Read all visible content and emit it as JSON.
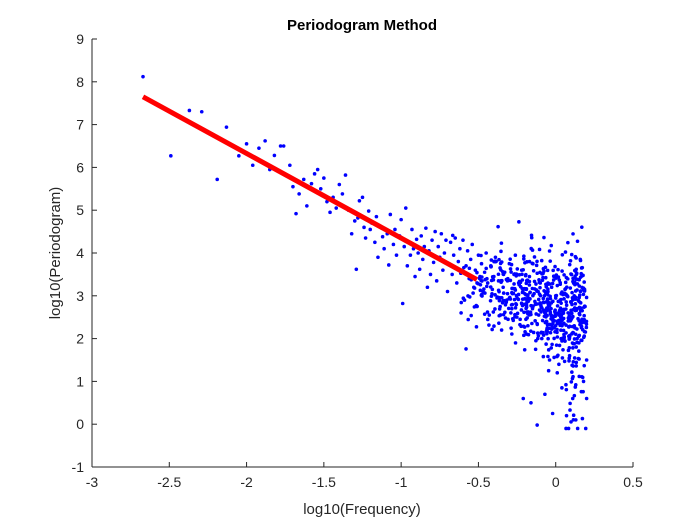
{
  "chart_data": {
    "type": "scatter",
    "title": "Periodogram Method",
    "xlabel": "log10(Frequency)",
    "ylabel": "log10(Periodogram)",
    "xlim": [
      -3,
      0.5
    ],
    "ylim": [
      -1,
      9
    ],
    "xticks": [
      -3,
      -2.5,
      -2,
      -1.5,
      -1,
      -0.5,
      0,
      0.5
    ],
    "xtick_labels": [
      "-3",
      "-2.5",
      "-2",
      "-1.5",
      "-1",
      "-0.5",
      "0",
      "0.5"
    ],
    "yticks": [
      -1,
      0,
      1,
      2,
      3,
      4,
      5,
      6,
      7,
      8,
      9
    ],
    "ytick_labels": [
      "-1",
      "0",
      "1",
      "2",
      "3",
      "4",
      "5",
      "6",
      "7",
      "8",
      "9"
    ],
    "grid": false,
    "series": [
      {
        "kind": "scatter",
        "color": "#0000ff",
        "points": [
          [
            -2.67,
            8.12
          ],
          [
            -2.49,
            6.27
          ],
          [
            -2.37,
            7.33
          ],
          [
            -2.29,
            7.3
          ],
          [
            -2.19,
            5.72
          ],
          [
            -2.13,
            6.94
          ],
          [
            -2.05,
            6.27
          ],
          [
            -2.0,
            6.55
          ],
          [
            -1.96,
            6.05
          ],
          [
            -1.92,
            6.45
          ],
          [
            -1.88,
            6.62
          ],
          [
            -1.85,
            5.95
          ],
          [
            -1.82,
            6.28
          ],
          [
            -1.78,
            6.5
          ],
          [
            -1.76,
            6.5
          ],
          [
            -1.72,
            6.05
          ],
          [
            -1.7,
            5.55
          ],
          [
            -1.68,
            4.92
          ],
          [
            -1.66,
            5.38
          ],
          [
            -1.63,
            5.72
          ],
          [
            -1.61,
            5.1
          ],
          [
            -1.58,
            5.62
          ],
          [
            -1.56,
            5.85
          ],
          [
            -1.54,
            5.95
          ],
          [
            -1.52,
            5.5
          ],
          [
            -1.5,
            5.75
          ],
          [
            -1.48,
            5.2
          ],
          [
            -1.46,
            4.95
          ],
          [
            -1.44,
            5.3
          ],
          [
            -1.42,
            5.05
          ],
          [
            -1.4,
            5.6
          ],
          [
            -1.38,
            5.38
          ],
          [
            -1.36,
            5.82
          ],
          [
            -1.34,
            5.0
          ],
          [
            -1.32,
            4.45
          ],
          [
            -1.3,
            4.75
          ],
          [
            -1.29,
            3.62
          ],
          [
            -1.28,
            4.82
          ],
          [
            -1.27,
            5.22
          ],
          [
            -1.25,
            5.3
          ],
          [
            -1.24,
            4.6
          ],
          [
            -1.23,
            4.35
          ],
          [
            -1.21,
            4.98
          ],
          [
            -1.2,
            4.55
          ],
          [
            -1.19,
            4.7
          ],
          [
            -1.17,
            4.25
          ],
          [
            -1.16,
            4.85
          ],
          [
            -1.15,
            3.9
          ],
          [
            -1.13,
            4.6
          ],
          [
            -1.12,
            4.38
          ],
          [
            -1.11,
            4.1
          ],
          [
            -1.09,
            4.45
          ],
          [
            -1.08,
            3.72
          ],
          [
            -1.07,
            4.9
          ],
          [
            -1.05,
            4.2
          ],
          [
            -1.04,
            4.55
          ],
          [
            -1.03,
            3.95
          ],
          [
            -1.01,
            4.4
          ],
          [
            -1.0,
            4.78
          ],
          [
            -0.99,
            2.82
          ],
          [
            -0.98,
            4.15
          ],
          [
            -0.97,
            5.05
          ],
          [
            -0.96,
            3.7
          ],
          [
            -0.95,
            4.25
          ],
          [
            -0.94,
            3.95
          ],
          [
            -0.93,
            4.55
          ],
          [
            -0.92,
            4.1
          ],
          [
            -0.91,
            3.45
          ],
          [
            -0.9,
            4.32
          ],
          [
            -0.89,
            4.0
          ],
          [
            -0.88,
            3.62
          ],
          [
            -0.87,
            4.4
          ],
          [
            -0.86,
            3.85
          ],
          [
            -0.85,
            4.15
          ],
          [
            -0.84,
            4.58
          ],
          [
            -0.83,
            3.2
          ],
          [
            -0.82,
            4.05
          ],
          [
            -0.81,
            3.5
          ],
          [
            -0.8,
            4.3
          ],
          [
            -0.79,
            3.78
          ],
          [
            -0.78,
            4.5
          ],
          [
            -0.77,
            3.35
          ],
          [
            -0.76,
            4.15
          ],
          [
            -0.75,
            3.9
          ],
          [
            -0.74,
            4.45
          ],
          [
            -0.73,
            3.6
          ],
          [
            -0.72,
            4.0
          ],
          [
            -0.71,
            4.3
          ],
          [
            -0.7,
            3.1
          ],
          [
            -0.69,
            3.75
          ],
          [
            -0.68,
            4.25
          ],
          [
            -0.67,
            3.5
          ],
          [
            -0.66,
            3.95
          ],
          [
            -0.65,
            4.35
          ],
          [
            -0.64,
            3.3
          ],
          [
            -0.63,
            3.8
          ],
          [
            -0.62,
            4.1
          ],
          [
            -0.61,
            3.55
          ],
          [
            -0.6,
            4.3
          ],
          [
            -0.59,
            2.9
          ],
          [
            -0.58,
            3.7
          ],
          [
            -0.57,
            4.05
          ],
          [
            -0.56,
            3.4
          ],
          [
            -0.55,
            3.85
          ],
          [
            -0.54,
            4.2
          ],
          [
            -0.53,
            3.2
          ],
          [
            -0.52,
            3.6
          ],
          [
            -0.51,
            2.75
          ],
          [
            -0.5,
            3.95
          ],
          [
            -0.49,
            3.45
          ],
          [
            -0.48,
            3.75
          ],
          [
            -0.47,
            3.1
          ],
          [
            -0.46,
            3.55
          ],
          [
            -0.45,
            4.0
          ],
          [
            -0.44,
            3.3
          ],
          [
            -0.43,
            2.55
          ],
          [
            -0.42,
            3.7
          ],
          [
            -0.41,
            3.15
          ],
          [
            -0.4,
            3.45
          ],
          [
            -0.39,
            3.9
          ],
          [
            -0.38,
            2.95
          ],
          [
            -0.37,
            3.35
          ],
          [
            -0.36,
            3.65
          ],
          [
            -0.35,
            2.2
          ],
          [
            -0.34,
            3.2
          ],
          [
            -0.33,
            3.55
          ],
          [
            -0.32,
            2.85
          ],
          [
            -0.31,
            3.4
          ],
          [
            -0.3,
            3.75
          ],
          [
            -0.29,
            2.6
          ],
          [
            -0.28,
            3.05
          ],
          [
            -0.27,
            3.5
          ],
          [
            -0.26,
            1.9
          ],
          [
            -0.25,
            2.95
          ],
          [
            -0.24,
            3.3
          ],
          [
            -0.23,
            2.45
          ],
          [
            -0.22,
            3.6
          ],
          [
            -0.21,
            0.6
          ],
          [
            -0.2,
            2.8
          ],
          [
            -0.19,
            3.15
          ],
          [
            -0.18,
            2.3
          ],
          [
            -0.17,
            3.45
          ],
          [
            -0.16,
            0.5
          ],
          [
            -0.15,
            2.7
          ],
          [
            -0.14,
            3.05
          ],
          [
            -0.13,
            1.75
          ],
          [
            -0.12,
            -0.02
          ],
          [
            -0.11,
            2.55
          ],
          [
            -0.1,
            3.3
          ],
          [
            -0.09,
            2.0
          ],
          [
            -0.08,
            2.85
          ],
          [
            -0.07,
            0.7
          ],
          [
            -0.06,
            2.4
          ],
          [
            -0.05,
            3.1
          ],
          [
            -0.04,
            1.5
          ],
          [
            -0.03,
            2.7
          ],
          [
            -0.02,
            0.25
          ],
          [
            -0.01,
            2.25
          ],
          [
            0.0,
            3.0
          ],
          [
            0.01,
            1.2
          ],
          [
            0.02,
            2.55
          ],
          [
            0.03,
            2.9
          ],
          [
            0.04,
            0.85
          ],
          [
            0.05,
            2.35
          ],
          [
            0.06,
            3.15
          ],
          [
            0.07,
            0.2
          ],
          [
            0.08,
            2.6
          ],
          [
            0.09,
            1.6
          ],
          [
            0.1,
            2.85
          ],
          [
            0.11,
            0.6
          ],
          [
            0.12,
            2.3
          ],
          [
            0.13,
            0.1
          ],
          [
            0.14,
            2.7
          ],
          [
            0.15,
            1.9
          ],
          [
            0.16,
            3.1
          ],
          [
            0.17,
            2.45
          ],
          [
            0.18,
            1.0
          ],
          [
            0.19,
            2.75
          ],
          [
            0.2,
            0.6
          ],
          [
            0.2,
            1.5
          ]
        ],
        "generated_cloud": {
          "count": 620,
          "x_range": [
            -0.7,
            0.2
          ],
          "center_y": 2.55,
          "spread": 0.55
        }
      },
      {
        "kind": "line",
        "color": "#ff0000",
        "points": [
          [
            -2.67,
            7.65
          ],
          [
            -0.51,
            3.38
          ]
        ]
      }
    ]
  }
}
